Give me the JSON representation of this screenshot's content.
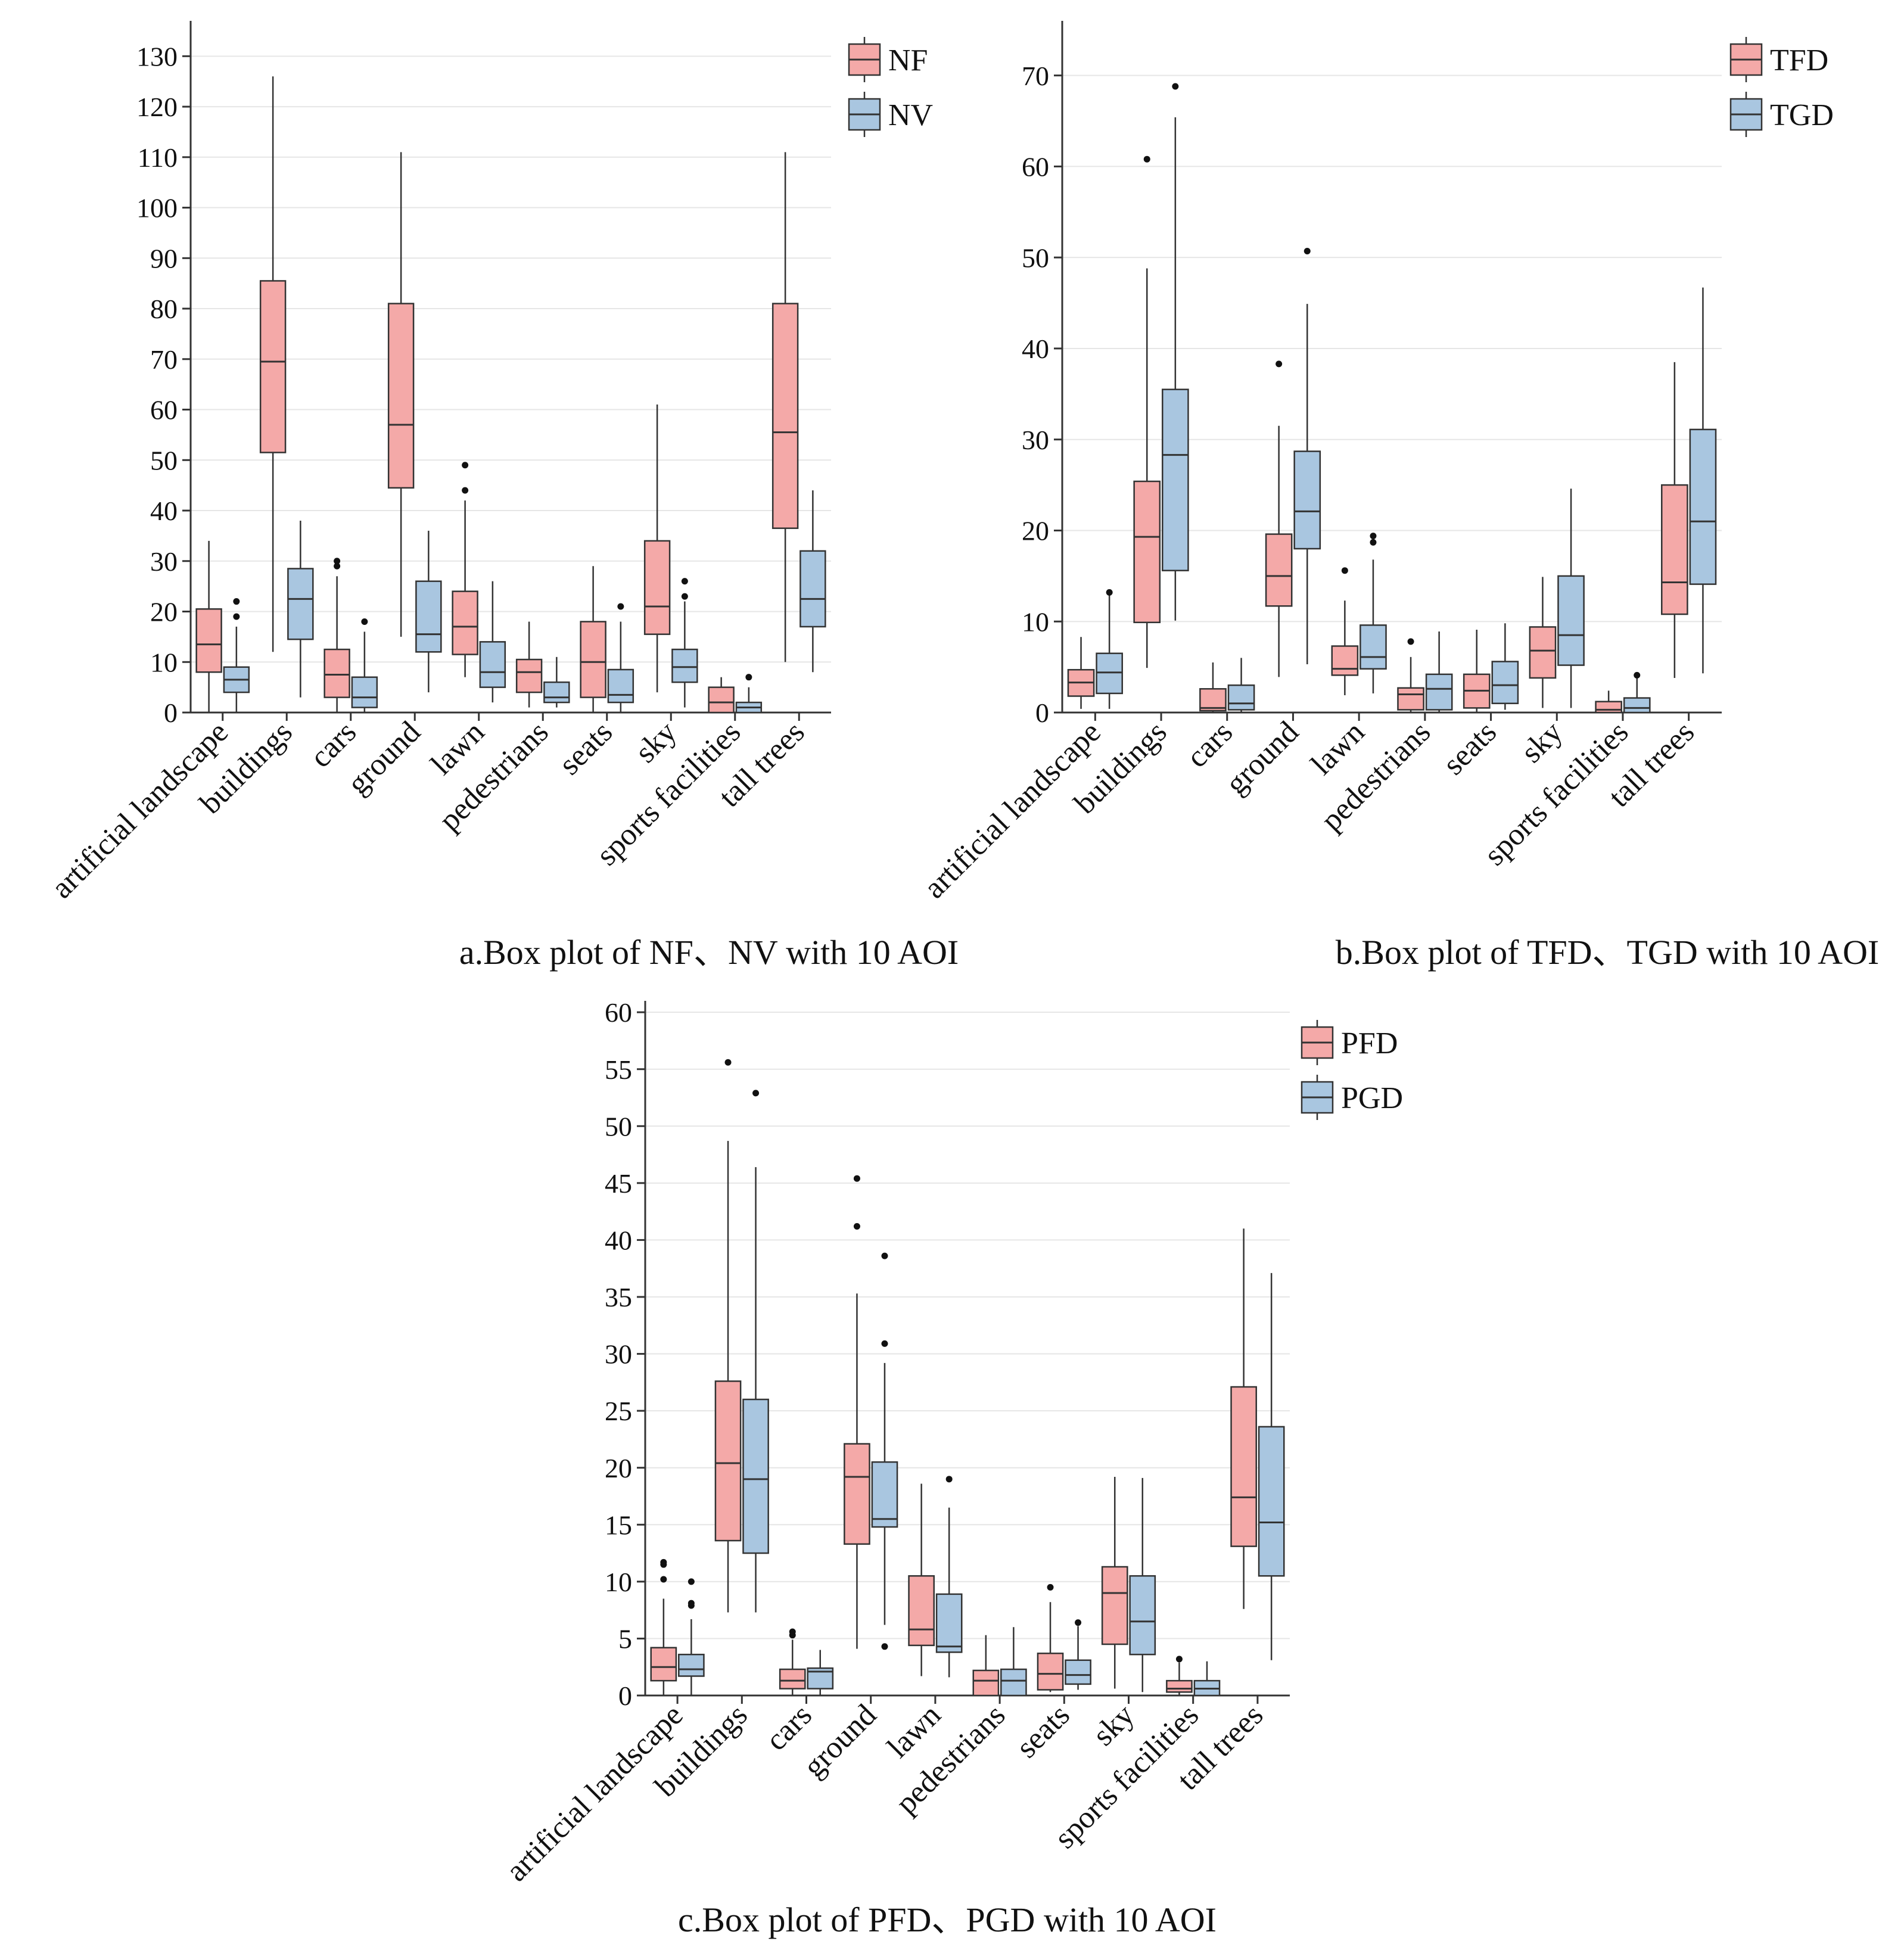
{
  "colors": {
    "series_a": "#f4a9a8",
    "series_b": "#a9c6e0"
  },
  "chart_data": [
    {
      "id": "a",
      "type": "box",
      "title": "a.Box plot of NF、NV with 10 AOI",
      "ylim": [
        0,
        137
      ],
      "yticks": [
        0,
        10,
        20,
        30,
        40,
        50,
        60,
        70,
        80,
        90,
        100,
        110,
        120,
        130
      ],
      "grid": true,
      "legend_position": "top-right",
      "categories": [
        "artificial landscape",
        "buildings",
        "cars",
        "ground",
        "lawn",
        "pedestrians",
        "seats",
        "sky",
        "sports facilities",
        "tall trees"
      ],
      "series": [
        {
          "name": "NF",
          "color": "#f4a9a8",
          "boxes": [
            {
              "min": 0,
              "q1": 8,
              "median": 13.5,
              "q3": 20.5,
              "max": 34,
              "outliers": []
            },
            {
              "min": 12,
              "q1": 51.5,
              "median": 69.5,
              "q3": 85.5,
              "max": 126,
              "outliers": []
            },
            {
              "min": 0,
              "q1": 3,
              "median": 7.5,
              "q3": 12.5,
              "max": 27,
              "outliers": [
                29,
                30
              ]
            },
            {
              "min": 15,
              "q1": 44.5,
              "median": 57,
              "q3": 81,
              "max": 111,
              "outliers": []
            },
            {
              "min": 7,
              "q1": 11.5,
              "median": 17,
              "q3": 24,
              "max": 42,
              "outliers": [
                44,
                49
              ]
            },
            {
              "min": 1,
              "q1": 4,
              "median": 8,
              "q3": 10.5,
              "max": 18,
              "outliers": []
            },
            {
              "min": 0,
              "q1": 3,
              "median": 10,
              "q3": 18,
              "max": 29,
              "outliers": []
            },
            {
              "min": 4,
              "q1": 15.5,
              "median": 21,
              "q3": 34,
              "max": 61,
              "outliers": []
            },
            {
              "min": 0,
              "q1": 0,
              "median": 2,
              "q3": 5,
              "max": 7,
              "outliers": []
            },
            {
              "min": 10,
              "q1": 36.5,
              "median": 55.5,
              "q3": 81,
              "max": 111,
              "outliers": []
            }
          ]
        },
        {
          "name": "NV",
          "color": "#a9c6e0",
          "boxes": [
            {
              "min": 0,
              "q1": 4,
              "median": 6.5,
              "q3": 9,
              "max": 17,
              "outliers": [
                19,
                22
              ]
            },
            {
              "min": 3,
              "q1": 14.5,
              "median": 22.5,
              "q3": 28.5,
              "max": 38,
              "outliers": []
            },
            {
              "min": 0,
              "q1": 1,
              "median": 3,
              "q3": 7,
              "max": 16,
              "outliers": [
                18
              ]
            },
            {
              "min": 4,
              "q1": 12,
              "median": 15.5,
              "q3": 26,
              "max": 36,
              "outliers": []
            },
            {
              "min": 2,
              "q1": 5,
              "median": 8,
              "q3": 14,
              "max": 26,
              "outliers": []
            },
            {
              "min": 1,
              "q1": 2,
              "median": 3,
              "q3": 6,
              "max": 11,
              "outliers": []
            },
            {
              "min": 0,
              "q1": 2,
              "median": 3.5,
              "q3": 8.5,
              "max": 18,
              "outliers": [
                21
              ]
            },
            {
              "min": 1,
              "q1": 6,
              "median": 9,
              "q3": 12.5,
              "max": 22,
              "outliers": [
                23,
                26
              ]
            },
            {
              "min": 0,
              "q1": 0,
              "median": 1,
              "q3": 2,
              "max": 5,
              "outliers": [
                7
              ]
            },
            {
              "min": 8,
              "q1": 17,
              "median": 22.5,
              "q3": 32,
              "max": 44,
              "outliers": []
            }
          ]
        }
      ]
    },
    {
      "id": "b",
      "type": "box",
      "title": "b.Box plot of TFD、TGD with 10 AOI",
      "ylim": [
        0,
        76
      ],
      "yticks": [
        0,
        10,
        20,
        30,
        40,
        50,
        60,
        70
      ],
      "grid": true,
      "legend_position": "top-right",
      "categories": [
        "artificial landscape",
        "buildings",
        "cars",
        "ground",
        "lawn",
        "pedestrians",
        "seats",
        "sky",
        "sports facilities",
        "tall trees"
      ],
      "series": [
        {
          "name": "TFD",
          "color": "#f4a9a8",
          "boxes": [
            {
              "min": 0.4,
              "q1": 1.8,
              "median": 3.3,
              "q3": 4.7,
              "max": 8.3,
              "outliers": []
            },
            {
              "min": 4.9,
              "q1": 9.9,
              "median": 19.3,
              "q3": 25.4,
              "max": 48.8,
              "outliers": [
                60.8
              ]
            },
            {
              "min": 0,
              "q1": 0.2,
              "median": 0.5,
              "q3": 2.6,
              "max": 5.5,
              "outliers": []
            },
            {
              "min": 3.9,
              "q1": 11.7,
              "median": 15,
              "q3": 19.6,
              "max": 31.5,
              "outliers": [
                38.3
              ]
            },
            {
              "min": 1.9,
              "q1": 4.1,
              "median": 4.8,
              "q3": 7.3,
              "max": 12.3,
              "outliers": [
                15.6
              ]
            },
            {
              "min": 0,
              "q1": 0.3,
              "median": 2,
              "q3": 2.7,
              "max": 6.1,
              "outliers": [
                7.8
              ]
            },
            {
              "min": 0.1,
              "q1": 0.5,
              "median": 2.4,
              "q3": 4.2,
              "max": 9.1,
              "outliers": []
            },
            {
              "min": 0.5,
              "q1": 3.8,
              "median": 6.8,
              "q3": 9.4,
              "max": 14.9,
              "outliers": []
            },
            {
              "min": 0,
              "q1": 0,
              "median": 0.3,
              "q3": 1.2,
              "max": 2.4,
              "outliers": []
            },
            {
              "min": 3.8,
              "q1": 10.8,
              "median": 14.3,
              "q3": 25,
              "max": 38.5,
              "outliers": []
            }
          ]
        },
        {
          "name": "TGD",
          "color": "#a9c6e0",
          "boxes": [
            {
              "min": 0.4,
              "q1": 2.1,
              "median": 4.4,
              "q3": 6.5,
              "max": 12.9,
              "outliers": [
                13.2
              ]
            },
            {
              "min": 10.1,
              "q1": 15.6,
              "median": 28.3,
              "q3": 35.5,
              "max": 65.4,
              "outliers": [
                68.8
              ]
            },
            {
              "min": 0,
              "q1": 0.3,
              "median": 1,
              "q3": 3,
              "max": 6,
              "outliers": []
            },
            {
              "min": 5.3,
              "q1": 18,
              "median": 22.1,
              "q3": 28.7,
              "max": 44.9,
              "outliers": [
                50.7
              ]
            },
            {
              "min": 2.1,
              "q1": 4.8,
              "median": 6.1,
              "q3": 9.6,
              "max": 16.8,
              "outliers": [
                18.7,
                19.4
              ]
            },
            {
              "min": 0,
              "q1": 0.3,
              "median": 2.6,
              "q3": 4.2,
              "max": 8.9,
              "outliers": []
            },
            {
              "min": 0.3,
              "q1": 1,
              "median": 3,
              "q3": 5.6,
              "max": 9.8,
              "outliers": []
            },
            {
              "min": 0.5,
              "q1": 5.2,
              "median": 8.5,
              "q3": 15,
              "max": 24.6,
              "outliers": []
            },
            {
              "min": 0,
              "q1": 0,
              "median": 0.5,
              "q3": 1.6,
              "max": 3.9,
              "outliers": [
                4.1
              ]
            },
            {
              "min": 4.3,
              "q1": 14.1,
              "median": 21,
              "q3": 31.1,
              "max": 46.7,
              "outliers": []
            }
          ]
        }
      ]
    },
    {
      "id": "c",
      "type": "box",
      "title": "c.Box plot of PFD、PGD with 10 AOI",
      "ylim": [
        0,
        61
      ],
      "yticks": [
        0,
        5,
        10,
        15,
        20,
        25,
        30,
        35,
        40,
        45,
        50,
        55,
        60
      ],
      "grid": true,
      "legend_position": "top-right",
      "categories": [
        "artificial landscape",
        "buildings",
        "cars",
        "ground",
        "lawn",
        "pedestrians",
        "seats",
        "sky",
        "sports facilities",
        "tall trees"
      ],
      "series": [
        {
          "name": "PFD",
          "color": "#f4a9a8",
          "boxes": [
            {
              "min": 0,
              "q1": 1.3,
              "median": 2.5,
              "q3": 4.2,
              "max": 8.5,
              "outliers": [
                10.2,
                11.5,
                11.7
              ]
            },
            {
              "min": 7.3,
              "q1": 13.6,
              "median": 20.4,
              "q3": 27.6,
              "max": 48.7,
              "outliers": [
                55.6
              ]
            },
            {
              "min": 0,
              "q1": 0.6,
              "median": 1.3,
              "q3": 2.3,
              "max": 4.9,
              "outliers": [
                5.3,
                5.6
              ]
            },
            {
              "min": 4.1,
              "q1": 13.3,
              "median": 19.2,
              "q3": 22.1,
              "max": 35.3,
              "outliers": [
                41.2,
                45.4
              ]
            },
            {
              "min": 1.7,
              "q1": 4.4,
              "median": 5.8,
              "q3": 10.5,
              "max": 18.6,
              "outliers": []
            },
            {
              "min": 0,
              "q1": 0,
              "median": 1.3,
              "q3": 2.2,
              "max": 5.3,
              "outliers": []
            },
            {
              "min": 0.3,
              "q1": 0.5,
              "median": 1.9,
              "q3": 3.7,
              "max": 8.2,
              "outliers": [
                9.5
              ]
            },
            {
              "min": 0.6,
              "q1": 4.5,
              "median": 9,
              "q3": 11.3,
              "max": 19.2,
              "outliers": []
            },
            {
              "min": 0,
              "q1": 0.3,
              "median": 0.6,
              "q3": 1.3,
              "max": 2.9,
              "outliers": [
                3.2
              ]
            },
            {
              "min": 7.6,
              "q1": 13.1,
              "median": 17.4,
              "q3": 27.1,
              "max": 41,
              "outliers": []
            }
          ]
        },
        {
          "name": "PGD",
          "color": "#a9c6e0",
          "boxes": [
            {
              "min": 0,
              "q1": 1.7,
              "median": 2.3,
              "q3": 3.6,
              "max": 6.7,
              "outliers": [
                7.9,
                8.1,
                10
              ]
            },
            {
              "min": 7.3,
              "q1": 12.5,
              "median": 19,
              "q3": 26,
              "max": 46.4,
              "outliers": [
                52.9
              ]
            },
            {
              "min": 0,
              "q1": 0.6,
              "median": 2.1,
              "q3": 2.4,
              "max": 4,
              "outliers": []
            },
            {
              "min": 6.2,
              "q1": 14.8,
              "median": 15.5,
              "q3": 20.5,
              "max": 29.2,
              "outliers": [
                4.3,
                30.9,
                38.6
              ]
            },
            {
              "min": 1.6,
              "q1": 3.8,
              "median": 4.3,
              "q3": 8.9,
              "max": 16.5,
              "outliers": [
                19
              ]
            },
            {
              "min": 0,
              "q1": 0,
              "median": 1.3,
              "q3": 2.3,
              "max": 6,
              "outliers": []
            },
            {
              "min": 0.5,
              "q1": 1,
              "median": 1.8,
              "q3": 3.1,
              "max": 6.1,
              "outliers": [
                6.4
              ]
            },
            {
              "min": 0.3,
              "q1": 3.6,
              "median": 6.5,
              "q3": 10.5,
              "max": 19.1,
              "outliers": []
            },
            {
              "min": 0,
              "q1": 0,
              "median": 0.6,
              "q3": 1.3,
              "max": 3,
              "outliers": []
            },
            {
              "min": 3.1,
              "q1": 10.5,
              "median": 15.2,
              "q3": 23.6,
              "max": 37.1,
              "outliers": []
            }
          ]
        }
      ]
    }
  ]
}
